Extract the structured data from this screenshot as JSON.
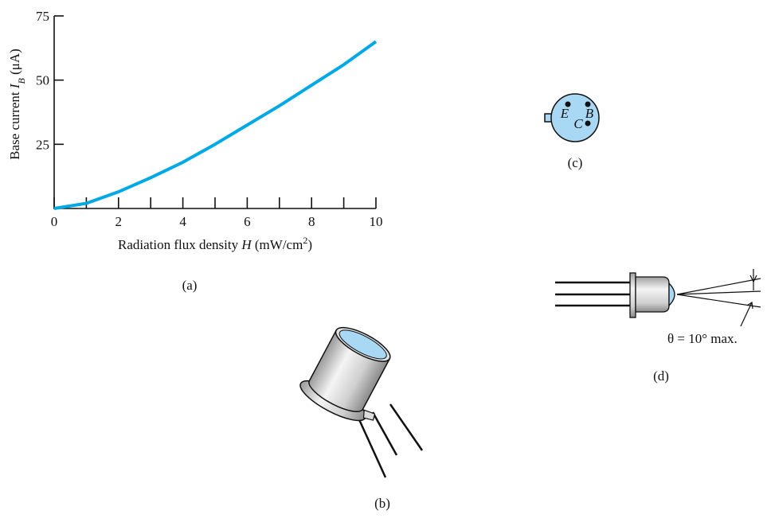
{
  "chart_data": {
    "type": "line",
    "xlabel": [
      "Radiation flux density ",
      "H",
      " (mW/cm",
      "2",
      ")"
    ],
    "ylabel": [
      "Base current ",
      "I",
      "B",
      " (μA)"
    ],
    "x": [
      0,
      1,
      2,
      3,
      4,
      5,
      6,
      7,
      8,
      9,
      10
    ],
    "series": [
      {
        "color": "#00a9e6",
        "values": [
          0,
          2,
          6.5,
          12,
          18,
          25,
          32.5,
          40,
          48,
          56,
          65
        ]
      }
    ],
    "xlim": [
      0,
      10
    ],
    "xticks": [
      0,
      2,
      4,
      6,
      8,
      10
    ],
    "xminor_ticks": [
      1,
      3,
      5,
      7,
      9
    ],
    "ylim": [
      0,
      75
    ],
    "yticks": [
      25,
      50,
      75
    ]
  },
  "captions": {
    "a": "(a)",
    "b": "(b)",
    "c": "(c)",
    "d": "(d)"
  },
  "pins": {
    "e": "E",
    "b": "B",
    "c": "C"
  },
  "angle_note": "θ = 10° max."
}
